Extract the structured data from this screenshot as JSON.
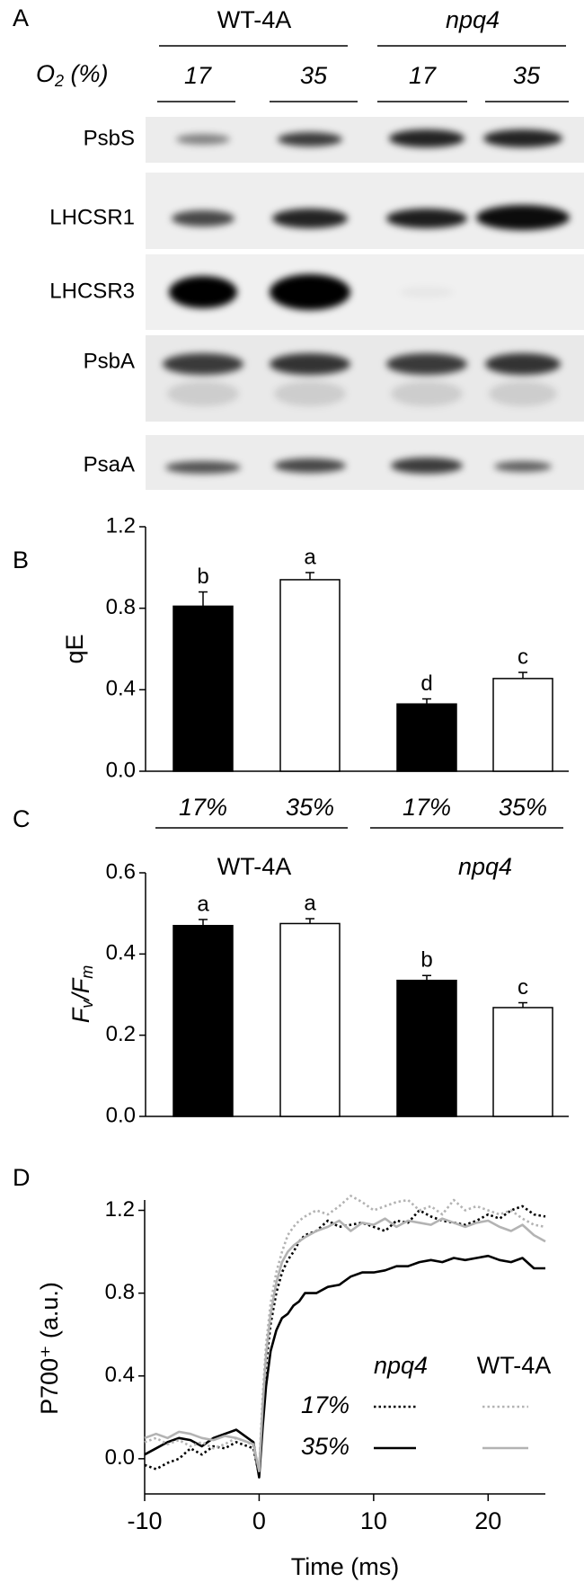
{
  "blot": {
    "panel_label": "A",
    "groups": [
      {
        "name": "WT-4A",
        "lanes": [
          "17",
          "35"
        ]
      },
      {
        "name": "npq4",
        "lanes": [
          "17",
          "35"
        ]
      }
    ],
    "oxygen_label": [
      "O",
      "2",
      " (%)"
    ],
    "rows": [
      "PsbS",
      "LHCSR1",
      "LHCSR3",
      "PsbA",
      "PsaA"
    ]
  },
  "chart_data": [
    {
      "type": "bar",
      "panel_label": "B",
      "ylabel": "qE",
      "categories": [
        "17%",
        "35%",
        "17%",
        "35%"
      ],
      "values": [
        0.81,
        0.94,
        0.33,
        0.455
      ],
      "errors": [
        0.07,
        0.035,
        0.025,
        0.03
      ],
      "annotations": [
        "b",
        "a",
        "d",
        "c"
      ],
      "colors": [
        "#000000",
        "#ffffff",
        "#000000",
        "#ffffff"
      ],
      "ylim": [
        0,
        1.2
      ],
      "yticks": [
        {
          "value": 0,
          "label": "0.0"
        },
        {
          "value": 0.4,
          "label": "0.4"
        },
        {
          "value": 0.8,
          "label": "0.8"
        },
        {
          "value": 1.2,
          "label": "1.2"
        }
      ]
    },
    {
      "type": "bar",
      "panel_label": "C",
      "ylabel_parts": [
        "F",
        "v",
        "/F",
        "m"
      ],
      "groups": [
        "WT-4A",
        "npq4"
      ],
      "values": [
        0.47,
        0.475,
        0.335,
        0.268
      ],
      "errors": [
        0.015,
        0.012,
        0.012,
        0.012
      ],
      "annotations": [
        "a",
        "a",
        "b",
        "c"
      ],
      "colors": [
        "#000000",
        "#ffffff",
        "#000000",
        "#ffffff"
      ],
      "ylim": [
        0,
        0.6
      ],
      "yticks": [
        {
          "value": 0,
          "label": "0.0"
        },
        {
          "value": 0.2,
          "label": "0.2"
        },
        {
          "value": 0.4,
          "label": "0.4"
        },
        {
          "value": 0.6,
          "label": "0.6"
        }
      ]
    },
    {
      "type": "line",
      "panel_label": "D",
      "xlabel": "Time (ms)",
      "ylabel": "P700⁺ (a.u.)",
      "x": [
        -10,
        -9,
        -8,
        -7,
        -6,
        -5,
        -4,
        -3,
        -2,
        -1,
        -0.5,
        0,
        0.3,
        0.6,
        1,
        1.5,
        2,
        2.5,
        3,
        3.5,
        4,
        5,
        6,
        7,
        8,
        9,
        10,
        11,
        12,
        13,
        14,
        15,
        16,
        17,
        18,
        19,
        20,
        21,
        22,
        23,
        24,
        25
      ],
      "xlim": [
        -10,
        25
      ],
      "xticks": [
        -10,
        0,
        10,
        20
      ],
      "ylim": [
        -0.17,
        1.25
      ],
      "yticks": [
        {
          "value": 0,
          "label": "0.0"
        },
        {
          "value": 0.4,
          "label": "0.4"
        },
        {
          "value": 0.8,
          "label": "0.8"
        },
        {
          "value": 1.2,
          "label": "1.2"
        }
      ],
      "series_groups": [
        {
          "name": "npq4",
          "series": [
            {
              "name": "17%",
              "color": "#000000",
              "dash": "dotted",
              "values": [
                -0.03,
                -0.05,
                -0.02,
                0.0,
                0.05,
                0.02,
                0.06,
                0.05,
                0.08,
                0.06,
                0.05,
                -0.08,
                0.2,
                0.45,
                0.65,
                0.8,
                0.9,
                0.96,
                1.0,
                1.05,
                1.08,
                1.1,
                1.15,
                1.12,
                1.13,
                1.14,
                1.12,
                1.1,
                1.15,
                1.14,
                1.2,
                1.17,
                1.15,
                1.14,
                1.13,
                1.15,
                1.18,
                1.16,
                1.2,
                1.22,
                1.18,
                1.17
              ]
            },
            {
              "name": "35%",
              "color": "#000000",
              "dash": "solid",
              "values": [
                0.02,
                0.05,
                0.08,
                0.1,
                0.09,
                0.06,
                0.1,
                0.12,
                0.14,
                0.1,
                0.08,
                -0.09,
                0.15,
                0.35,
                0.52,
                0.62,
                0.68,
                0.7,
                0.74,
                0.76,
                0.8,
                0.8,
                0.83,
                0.84,
                0.88,
                0.9,
                0.9,
                0.91,
                0.93,
                0.93,
                0.95,
                0.96,
                0.95,
                0.97,
                0.96,
                0.97,
                0.98,
                0.96,
                0.95,
                0.97,
                0.92,
                0.92
              ]
            }
          ]
        },
        {
          "name": "WT-4A",
          "series": [
            {
              "name": "17%",
              "color": "#b3b3b3",
              "dash": "dotted",
              "values": [
                0.08,
                0.1,
                0.07,
                0.09,
                0.06,
                0.08,
                0.05,
                0.07,
                0.1,
                0.08,
                0.06,
                -0.05,
                0.3,
                0.55,
                0.75,
                0.9,
                1.0,
                1.08,
                1.12,
                1.15,
                1.17,
                1.2,
                1.18,
                1.22,
                1.27,
                1.24,
                1.2,
                1.22,
                1.24,
                1.25,
                1.2,
                1.22,
                1.18,
                1.25,
                1.2,
                1.22,
                1.2,
                1.18,
                1.2,
                1.16,
                1.13,
                1.12
              ]
            },
            {
              "name": "35%",
              "color": "#b3b3b3",
              "dash": "solid",
              "values": [
                0.1,
                0.12,
                0.1,
                0.13,
                0.12,
                0.1,
                0.09,
                0.11,
                0.1,
                0.08,
                0.07,
                -0.06,
                0.25,
                0.5,
                0.7,
                0.85,
                0.95,
                1.0,
                1.03,
                1.05,
                1.07,
                1.1,
                1.12,
                1.15,
                1.1,
                1.14,
                1.13,
                1.16,
                1.12,
                1.15,
                1.14,
                1.13,
                1.16,
                1.14,
                1.12,
                1.14,
                1.15,
                1.12,
                1.1,
                1.13,
                1.08,
                1.05
              ]
            }
          ]
        }
      ]
    }
  ]
}
